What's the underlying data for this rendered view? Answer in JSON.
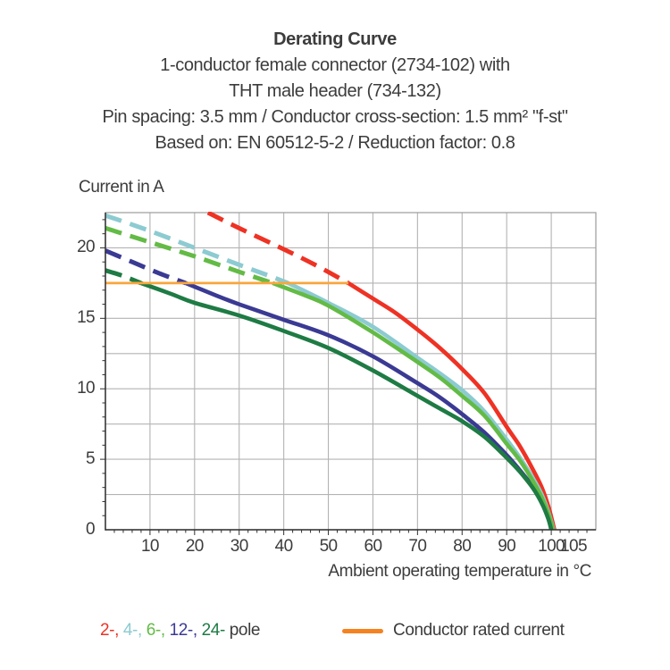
{
  "title": {
    "heading": "Derating Curve",
    "sub_lines": [
      "1-conductor female connector (2734-102) with",
      "THT male header (734-132)",
      "Pin spacing: 3.5 mm / Conductor cross-section: 1.5 mm² \"f-st\"",
      "Based on: EN 60512-5-2 / Reduction factor: 0.8"
    ]
  },
  "legend": {
    "pole_items": [
      {
        "label": "2-,",
        "color": "#ee3224"
      },
      {
        "label": "4-,",
        "color": "#8ccbd1"
      },
      {
        "label": "6-,",
        "color": "#63bb46"
      },
      {
        "label": "12-,",
        "color": "#3a3a94"
      },
      {
        "label": "24-",
        "color": "#1e7b44"
      }
    ],
    "pole_suffix": "pole",
    "pole_suffix_color": "#3c3c3c",
    "rated_label": "Conductor rated current",
    "rated_swatch_color": "#f58220"
  },
  "chart_data": {
    "type": "line",
    "title": "Derating Curve",
    "xlabel": "Ambient operating temperature in °C",
    "ylabel": "Current in A",
    "xlim": [
      0,
      110
    ],
    "ylim": [
      0,
      22.5
    ],
    "grid": {
      "on": true,
      "x_every": 10,
      "y_every": 2.5,
      "color": "#b3b3b3",
      "border_color": "#9b9b9b"
    },
    "minor_ticks": {
      "x_step": 2,
      "y_step": 1
    },
    "x_tick_labels": [
      10,
      20,
      30,
      40,
      50,
      60,
      70,
      80,
      90,
      100,
      105
    ],
    "y_tick_labels": [
      0,
      5,
      10,
      15,
      20
    ],
    "axis_color": "#2f2f2f",
    "rated_current_line": {
      "label": "Conductor rated current",
      "y": 17.5,
      "x_start": 0,
      "x_end": 54.5,
      "color": "#f9a63c"
    },
    "series": [
      {
        "name": "2-pole",
        "poles": 2,
        "color": "#ee3224",
        "dashed": [
          [
            23,
            22.5
          ],
          [
            30,
            21.4
          ],
          [
            40,
            19.9
          ],
          [
            47,
            18.8
          ],
          [
            54.5,
            17.5
          ]
        ],
        "solid": [
          [
            54.5,
            17.5
          ],
          [
            60,
            16.4
          ],
          [
            65,
            15.4
          ],
          [
            70,
            14.2
          ],
          [
            75,
            12.9
          ],
          [
            80,
            11.4
          ],
          [
            85,
            9.7
          ],
          [
            90,
            7.3
          ],
          [
            93,
            5.9
          ],
          [
            96,
            4.2
          ],
          [
            98,
            2.9
          ],
          [
            99.5,
            1.5
          ],
          [
            100.7,
            0
          ]
        ]
      },
      {
        "name": "4-pole",
        "poles": 4,
        "color": "#8ccbd1",
        "dashed": [
          [
            0,
            22.3
          ],
          [
            10,
            21.2
          ],
          [
            20,
            20.0
          ],
          [
            30,
            18.8
          ],
          [
            36,
            18.1
          ],
          [
            41,
            17.5
          ]
        ],
        "solid": [
          [
            41,
            17.5
          ],
          [
            50,
            16.1
          ],
          [
            60,
            14.4
          ],
          [
            70,
            12.2
          ],
          [
            75,
            11.1
          ],
          [
            80,
            9.9
          ],
          [
            85,
            8.4
          ],
          [
            90,
            6.4
          ],
          [
            93,
            5.1
          ],
          [
            96,
            3.6
          ],
          [
            98,
            2.4
          ],
          [
            99.5,
            1.1
          ],
          [
            100.5,
            0
          ]
        ]
      },
      {
        "name": "6-pole",
        "poles": 6,
        "color": "#63bb46",
        "dashed": [
          [
            0,
            21.4
          ],
          [
            10,
            20.4
          ],
          [
            20,
            19.4
          ],
          [
            30,
            18.3
          ],
          [
            37.5,
            17.5
          ]
        ],
        "solid": [
          [
            37.5,
            17.5
          ],
          [
            45,
            16.6
          ],
          [
            50,
            15.9
          ],
          [
            60,
            14.0
          ],
          [
            70,
            11.9
          ],
          [
            75,
            10.8
          ],
          [
            80,
            9.5
          ],
          [
            85,
            8.1
          ],
          [
            90,
            6.1
          ],
          [
            93,
            4.9
          ],
          [
            96,
            3.4
          ],
          [
            98,
            2.2
          ],
          [
            99.5,
            1.0
          ],
          [
            100.4,
            0
          ]
        ]
      },
      {
        "name": "12-pole",
        "poles": 12,
        "color": "#3a3a94",
        "dashed": [
          [
            0,
            19.8
          ],
          [
            6,
            19.0
          ],
          [
            12,
            18.2
          ],
          [
            18,
            17.5
          ]
        ],
        "solid": [
          [
            18,
            17.5
          ],
          [
            25,
            16.6
          ],
          [
            30,
            16.0
          ],
          [
            40,
            14.9
          ],
          [
            50,
            13.8
          ],
          [
            60,
            12.3
          ],
          [
            70,
            10.4
          ],
          [
            75,
            9.4
          ],
          [
            80,
            8.2
          ],
          [
            85,
            6.9
          ],
          [
            90,
            5.3
          ],
          [
            93,
            4.2
          ],
          [
            96,
            3.0
          ],
          [
            98,
            1.9
          ],
          [
            99.4,
            0.9
          ],
          [
            100.2,
            0
          ]
        ]
      },
      {
        "name": "24-pole",
        "poles": 24,
        "color": "#1e7b44",
        "dashed": [
          [
            0,
            18.4
          ],
          [
            4,
            18.0
          ],
          [
            8,
            17.5
          ]
        ],
        "solid": [
          [
            8,
            17.5
          ],
          [
            15,
            16.7
          ],
          [
            20,
            16.1
          ],
          [
            30,
            15.2
          ],
          [
            40,
            14.1
          ],
          [
            50,
            12.9
          ],
          [
            60,
            11.3
          ],
          [
            70,
            9.5
          ],
          [
            75,
            8.6
          ],
          [
            80,
            7.7
          ],
          [
            85,
            6.6
          ],
          [
            90,
            5.1
          ],
          [
            93,
            4.1
          ],
          [
            96,
            2.9
          ],
          [
            98,
            1.8
          ],
          [
            99.3,
            0.8
          ],
          [
            100,
            0
          ]
        ]
      }
    ]
  }
}
